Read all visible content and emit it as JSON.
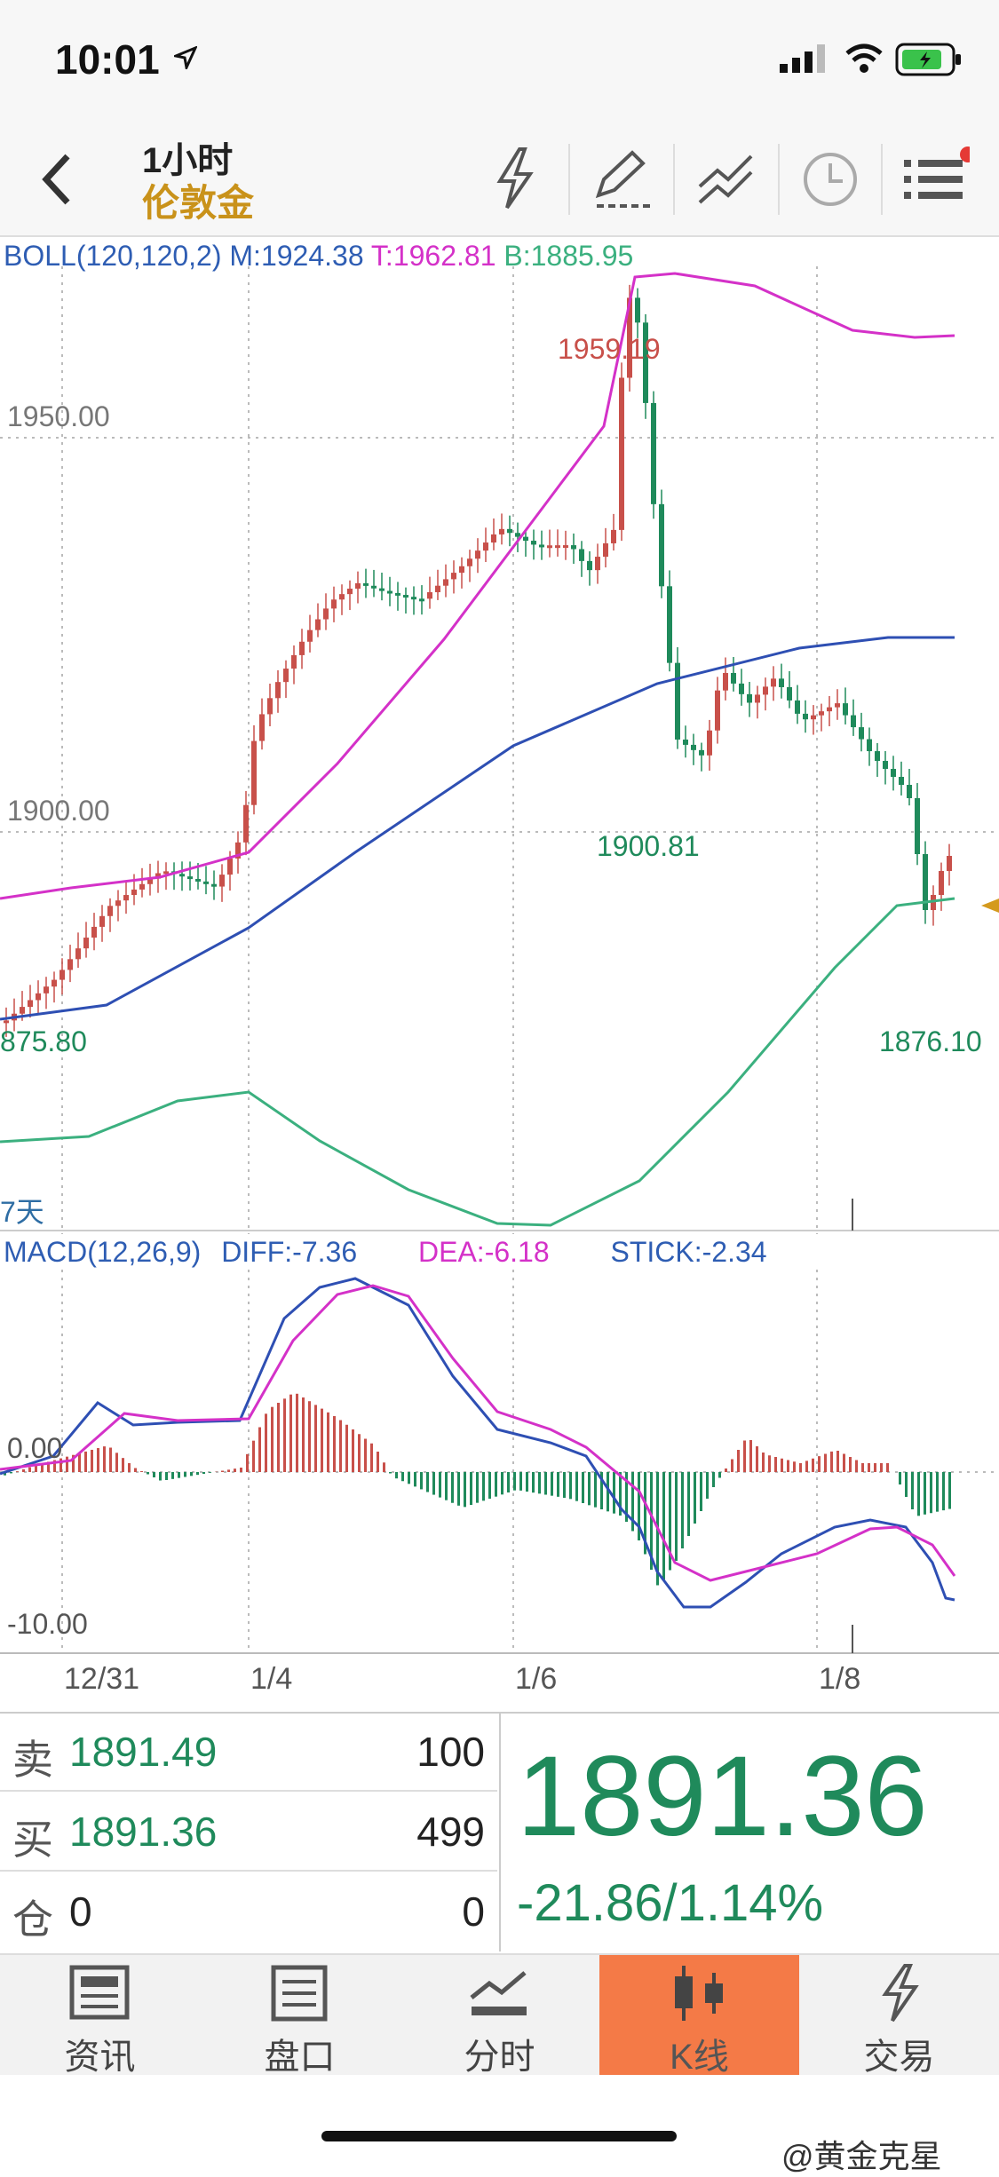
{
  "status": {
    "time": "10:01",
    "location_icon": "location-arrow-icon"
  },
  "header": {
    "period": "1小时",
    "instrument": "伦敦金",
    "icons": [
      "back-icon",
      "lightning-icon",
      "draw-pen-icon",
      "trend-line-icon",
      "clock-icon",
      "menu-icon"
    ]
  },
  "boll": {
    "label": "BOLL(120,120,2)",
    "m": "M:1924.38",
    "t": "T:1962.81",
    "b": "B:1885.95"
  },
  "chart_data": {
    "type": "candlestick",
    "price_labels": {
      "p1950": "1950.00",
      "p1900": "1900.00"
    },
    "annotations": {
      "high": "1959.19",
      "low_left": "875.80",
      "mid_low": "1900.81",
      "low_right": "1876.10"
    },
    "days_label": "7天",
    "x_ticks": [
      "12/31",
      "1/4",
      "1/6",
      "1/8"
    ],
    "macd_ticks": {
      "zero": "0.00",
      "neg10": "-10.00"
    }
  },
  "macd": {
    "label": "MACD(12,26,9)",
    "diff": "DIFF:-7.36",
    "dea": "DEA:-6.18",
    "stick": "STICK:-2.34"
  },
  "quote": {
    "sell": {
      "label": "卖",
      "price": "1891.49",
      "qty": "100"
    },
    "buy": {
      "label": "买",
      "price": "1891.36",
      "qty": "499"
    },
    "position": {
      "label": "仓",
      "value": "0",
      "qty": "0"
    },
    "last": "1891.36",
    "change": "-21.86/1.14%"
  },
  "tabs": [
    {
      "label": "资讯",
      "icon": "news-icon"
    },
    {
      "label": "盘口",
      "icon": "orderbook-icon"
    },
    {
      "label": "分时",
      "icon": "timeshare-icon"
    },
    {
      "label": "K线",
      "icon": "kline-icon"
    },
    {
      "label": "交易",
      "icon": "trade-icon"
    }
  ],
  "watermark": "@黄金克星",
  "colors": {
    "accent": "#c9921a",
    "down": "#1f8a5b",
    "up": "#c8504a",
    "active_tab": "#f47a47"
  }
}
